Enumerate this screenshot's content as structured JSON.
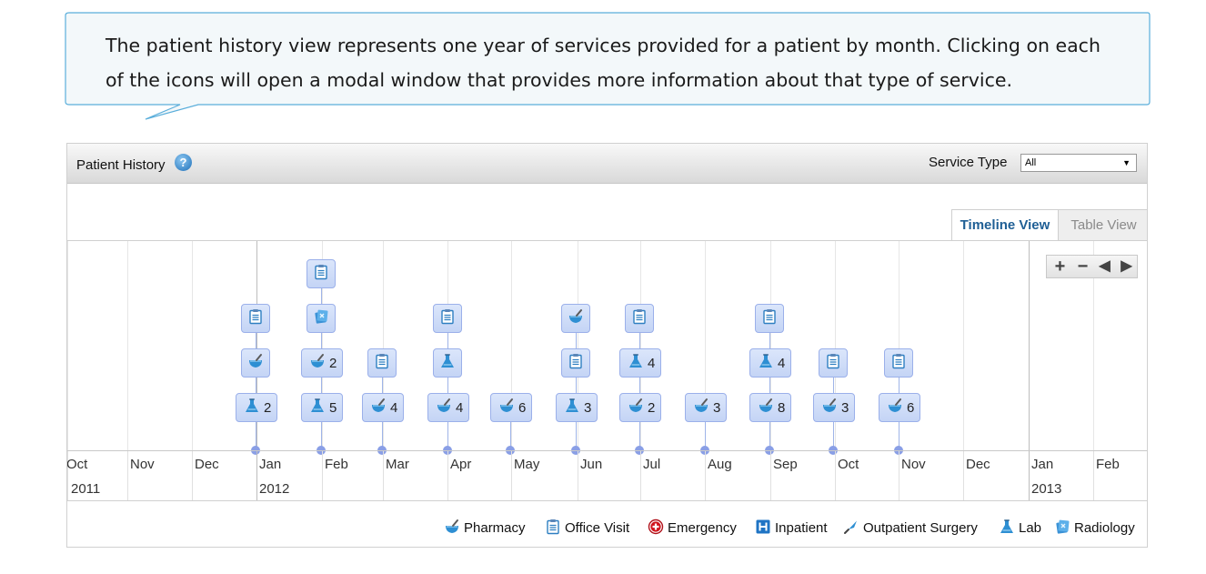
{
  "callout": {
    "text": "The patient history view represents one year of services provided for a patient by month.  Clicking on each of the icons will open a modal window that provides more information about that type of service."
  },
  "widget": {
    "title": "Patient History",
    "help_icon": "help-icon",
    "service_type_label": "Service Type",
    "service_type_value": "All",
    "tabs": {
      "timeline": "Timeline View",
      "table": "Table View"
    },
    "zoom_controls": [
      "plus-icon",
      "minus-icon",
      "arrow-left-icon",
      "arrow-right-icon"
    ]
  },
  "axis": {
    "months": [
      "Oct",
      "Nov",
      "Dec",
      "Jan",
      "Feb",
      "Mar",
      "Apr",
      "May",
      "Jun",
      "Jul",
      "Aug",
      "Sep",
      "Oct",
      "Nov",
      "Dec",
      "Jan",
      "Feb"
    ],
    "years": [
      "2011",
      "2012",
      "2013"
    ]
  },
  "timeline": [
    {
      "month": "Jan",
      "events": [
        {
          "type": "lab",
          "count": "2"
        },
        {
          "type": "pharmacy",
          "count": ""
        },
        {
          "type": "office-visit",
          "count": ""
        }
      ]
    },
    {
      "month": "Feb",
      "events": [
        {
          "type": "lab",
          "count": "5"
        },
        {
          "type": "pharmacy",
          "count": "2"
        },
        {
          "type": "radiology",
          "count": ""
        },
        {
          "type": "office-visit",
          "count": ""
        }
      ]
    },
    {
      "month": "Mar",
      "events": [
        {
          "type": "pharmacy",
          "count": "4"
        },
        {
          "type": "office-visit",
          "count": ""
        }
      ]
    },
    {
      "month": "Apr",
      "events": [
        {
          "type": "pharmacy",
          "count": "4"
        },
        {
          "type": "lab",
          "count": ""
        },
        {
          "type": "office-visit",
          "count": ""
        }
      ]
    },
    {
      "month": "May",
      "events": [
        {
          "type": "pharmacy",
          "count": "6"
        }
      ]
    },
    {
      "month": "Jun",
      "events": [
        {
          "type": "lab",
          "count": "3"
        },
        {
          "type": "office-visit",
          "count": ""
        },
        {
          "type": "pharmacy",
          "count": ""
        }
      ]
    },
    {
      "month": "Jul",
      "events": [
        {
          "type": "pharmacy",
          "count": "2"
        },
        {
          "type": "lab",
          "count": "4"
        },
        {
          "type": "office-visit",
          "count": ""
        }
      ]
    },
    {
      "month": "Aug",
      "events": [
        {
          "type": "pharmacy",
          "count": "3"
        }
      ]
    },
    {
      "month": "Sep",
      "events": [
        {
          "type": "pharmacy",
          "count": "8"
        },
        {
          "type": "lab",
          "count": "4"
        },
        {
          "type": "office-visit",
          "count": ""
        }
      ]
    },
    {
      "month": "Oct",
      "events": [
        {
          "type": "pharmacy",
          "count": "3"
        },
        {
          "type": "office-visit",
          "count": ""
        }
      ]
    },
    {
      "month": "Nov",
      "events": [
        {
          "type": "pharmacy",
          "count": "6"
        },
        {
          "type": "office-visit",
          "count": ""
        }
      ]
    }
  ],
  "legend": [
    {
      "type": "pharmacy",
      "label": "Pharmacy"
    },
    {
      "type": "office-visit",
      "label": "Office Visit"
    },
    {
      "type": "emergency",
      "label": "Emergency"
    },
    {
      "type": "inpatient",
      "label": "Inpatient"
    },
    {
      "type": "outpatient-surgery",
      "label": "Outpatient Surgery"
    },
    {
      "type": "lab",
      "label": "Lab"
    },
    {
      "type": "radiology",
      "label": "Radiology"
    }
  ],
  "colors": {
    "accent": "#1f5f95",
    "event_fill": "#c4d4f5",
    "event_border": "#9bb0ea",
    "callout_border": "#5aaedb",
    "callout_fill": "#f3f8fa"
  }
}
